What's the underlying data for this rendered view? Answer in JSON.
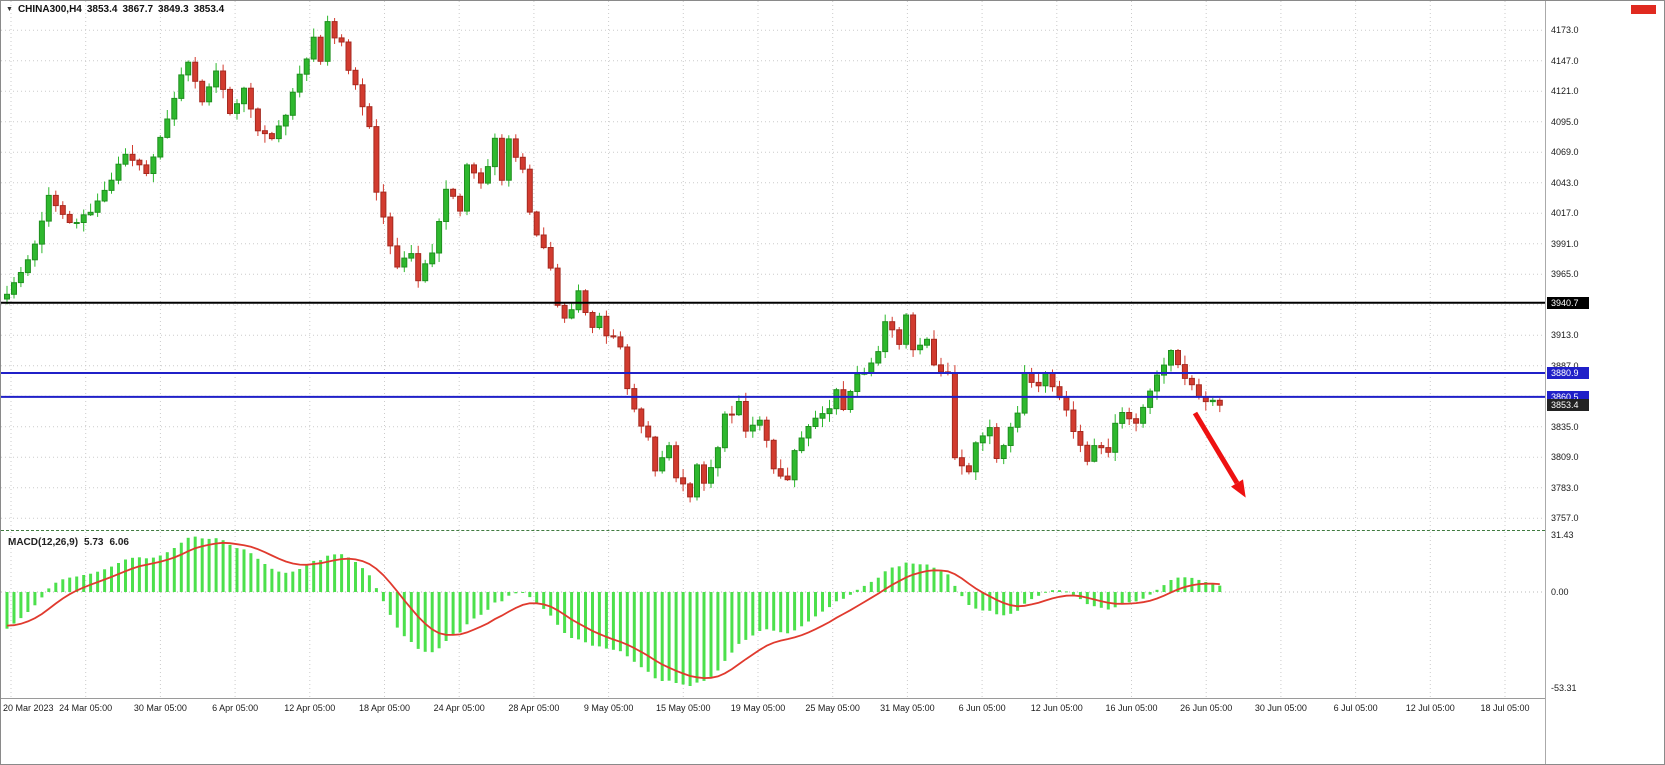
{
  "header": {
    "dropdown_icon": "▼",
    "symbol_period": "CHINA300,H4",
    "open": "3853.4",
    "high": "3867.7",
    "low": "3849.3",
    "close": "3853.4"
  },
  "indicator": {
    "name": "MACD(12,26,9)",
    "macd_value": "5.73",
    "signal_value": "6.06"
  },
  "colors": {
    "bull": "#2eb82e",
    "bull_border": "#1f8f1f",
    "bear": "#d23b2f",
    "bear_border": "#a52a20",
    "macd_hist": "#4ce04c",
    "macd_signal": "#e03a2e",
    "grid": "#cbcbcb",
    "level_black": "#000000",
    "level_blue": "#2020c8",
    "current_label_bg": "#222222",
    "arrow_red": "#ee1111"
  },
  "chart_data": {
    "type": "candlestick",
    "symbol": "CHINA300",
    "timeframe": "H4",
    "candles_total": 175,
    "price_axis": {
      "min": 3757.0,
      "max": 4173.0,
      "step": 26.0,
      "ticks": [
        4173.0,
        4147.0,
        4121.0,
        4095.0,
        4069.0,
        4043.0,
        4017.0,
        3991.0,
        3965.0,
        3913.0,
        3887.0,
        3835.0,
        3809.0,
        3783.0,
        3757.0
      ]
    },
    "levels": [
      {
        "price": 3940.7,
        "label": "3940.7",
        "color": "#000000"
      },
      {
        "price": 3880.9,
        "label": "3880.9",
        "color": "#2020c8"
      },
      {
        "price": 3860.5,
        "label": "3860.5",
        "color": "#2020c8"
      }
    ],
    "current_price": {
      "price": 3853.4,
      "label": "3853.4"
    },
    "last_candle_ohlc": {
      "open": 3853.4,
      "high": 3867.7,
      "low": 3849.3,
      "close": 3853.4
    },
    "time_labels": [
      "20 Mar 2023",
      "24 Mar 05:00",
      "30 Mar 05:00",
      "6 Apr 05:00",
      "12 Apr 05:00",
      "18 Apr 05:00",
      "24 Apr 05:00",
      "28 Apr 05:00",
      "9 May 05:00",
      "15 May 05:00",
      "19 May 05:00",
      "25 May 05:00",
      "31 May 05:00",
      "6 Jun 05:00",
      "12 Jun 05:00",
      "16 Jun 05:00",
      "26 Jun 05:00",
      "30 Jun 05:00",
      "6 Jul 05:00",
      "12 Jul 05:00",
      "18 Jul 05:00"
    ],
    "price_path": [
      [
        0,
        3950
      ],
      [
        2,
        3968
      ],
      [
        4,
        3992
      ],
      [
        6,
        4032
      ],
      [
        9,
        4006
      ],
      [
        13,
        4026
      ],
      [
        17,
        4068
      ],
      [
        20,
        4052
      ],
      [
        22,
        4082
      ],
      [
        24,
        4118
      ],
      [
        26,
        4146
      ],
      [
        28,
        4112
      ],
      [
        30,
        4140
      ],
      [
        32,
        4104
      ],
      [
        34,
        4122
      ],
      [
        36,
        4088
      ],
      [
        38,
        4078
      ],
      [
        40,
        4102
      ],
      [
        42,
        4136
      ],
      [
        44,
        4168
      ],
      [
        45,
        4150
      ],
      [
        46,
        4178
      ],
      [
        48,
        4160
      ],
      [
        50,
        4124
      ],
      [
        52,
        4090
      ],
      [
        53,
        4034
      ],
      [
        55,
        3988
      ],
      [
        56,
        3974
      ],
      [
        58,
        3986
      ],
      [
        59,
        3958
      ],
      [
        61,
        3986
      ],
      [
        63,
        4040
      ],
      [
        65,
        4022
      ],
      [
        66,
        4058
      ],
      [
        68,
        4040
      ],
      [
        70,
        4078
      ],
      [
        71,
        4048
      ],
      [
        72,
        4082
      ],
      [
        74,
        4052
      ],
      [
        75,
        4018
      ],
      [
        76,
        3998
      ],
      [
        78,
        3972
      ],
      [
        79,
        3942
      ],
      [
        80,
        3928
      ],
      [
        82,
        3948
      ],
      [
        84,
        3918
      ],
      [
        85,
        3932
      ],
      [
        86,
        3916
      ],
      [
        88,
        3902
      ],
      [
        89,
        3868
      ],
      [
        90,
        3848
      ],
      [
        92,
        3828
      ],
      [
        93,
        3798
      ],
      [
        95,
        3818
      ],
      [
        96,
        3792
      ],
      [
        98,
        3778
      ],
      [
        99,
        3802
      ],
      [
        100,
        3788
      ],
      [
        102,
        3818
      ],
      [
        103,
        3843
      ],
      [
        105,
        3854
      ],
      [
        106,
        3833
      ],
      [
        108,
        3838
      ],
      [
        109,
        3827
      ],
      [
        110,
        3798
      ],
      [
        112,
        3788
      ],
      [
        113,
        3818
      ],
      [
        115,
        3833
      ],
      [
        116,
        3843
      ],
      [
        118,
        3848
      ],
      [
        119,
        3868
      ],
      [
        120,
        3852
      ],
      [
        122,
        3878
      ],
      [
        123,
        3883
      ],
      [
        125,
        3902
      ],
      [
        126,
        3922
      ],
      [
        128,
        3908
      ],
      [
        129,
        3932
      ],
      [
        130,
        3902
      ],
      [
        132,
        3912
      ],
      [
        133,
        3888
      ],
      [
        135,
        3880
      ],
      [
        136,
        3808
      ],
      [
        138,
        3798
      ],
      [
        139,
        3818
      ],
      [
        141,
        3832
      ],
      [
        142,
        3806
      ],
      [
        143,
        3822
      ],
      [
        145,
        3848
      ],
      [
        146,
        3878
      ],
      [
        148,
        3872
      ],
      [
        149,
        3880
      ],
      [
        150,
        3868
      ],
      [
        152,
        3848
      ],
      [
        153,
        3828
      ],
      [
        155,
        3806
      ],
      [
        156,
        3818
      ],
      [
        158,
        3812
      ],
      [
        159,
        3838
      ],
      [
        160,
        3844
      ],
      [
        162,
        3838
      ],
      [
        163,
        3852
      ],
      [
        165,
        3878
      ],
      [
        167,
        3898
      ],
      [
        169,
        3878
      ],
      [
        171,
        3862
      ],
      [
        172,
        3858
      ],
      [
        174,
        3853.4
      ]
    ],
    "macd_axis": {
      "max": 31.43,
      "zero": 0.0,
      "min": -53.31,
      "max_label": "31.43",
      "zero_label": "0.00",
      "min_label": "-53.31"
    },
    "annotation": {
      "type": "arrow",
      "color": "#ee1111",
      "from": [
        1194,
        412
      ],
      "to": [
        1236,
        482
      ]
    }
  }
}
